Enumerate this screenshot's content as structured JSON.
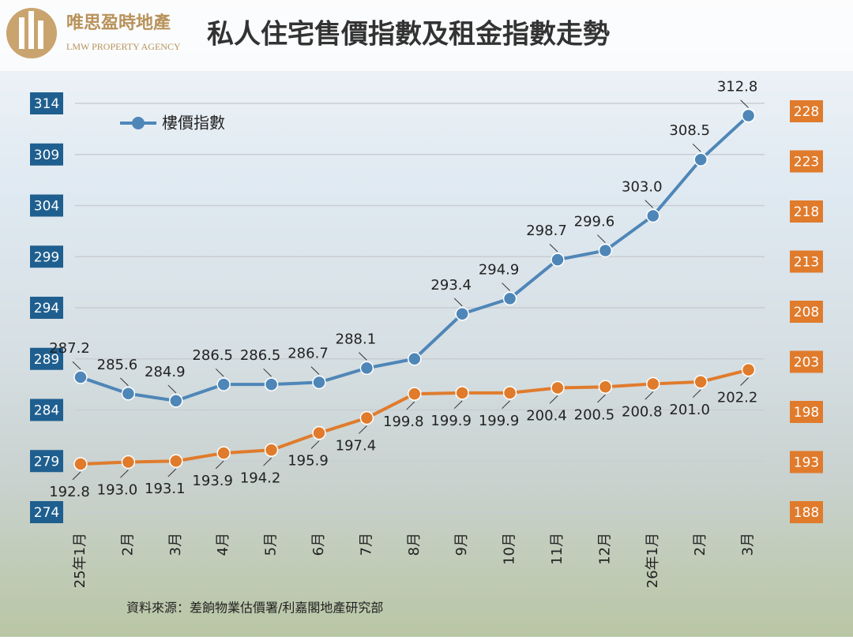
{
  "brand": {
    "name": "唯思盈時地產",
    "english": "LMW PROPERTY AGENCY"
  },
  "chart_data": {
    "type": "line",
    "title": "私人住宅售價指數及租金指數走勢",
    "categories": [
      "25年1月",
      "2月",
      "3月",
      "4月",
      "5月",
      "6月",
      "7月",
      "8月",
      "9月",
      "10月",
      "11月",
      "12月",
      "26年1月",
      "2月",
      "3月"
    ],
    "series": [
      {
        "name": "樓價指數",
        "color": "#4f86b8",
        "values": [
          287.2,
          285.6,
          284.9,
          286.5,
          286.5,
          286.7,
          288.1,
          289.0,
          293.4,
          294.9,
          298.7,
          299.6,
          303.0,
          308.5,
          312.8
        ],
        "value_labels": [
          "287.2",
          "285.6",
          "284.9",
          "286.5",
          "286.5",
          "286.7",
          "288.1",
          null,
          "293.4",
          "294.9",
          "298.7",
          "299.6",
          "303.0",
          "308.5",
          "312.8"
        ]
      },
      {
        "color": "#e07b2c",
        "axis": "y2",
        "values": [
          192.8,
          193.0,
          193.1,
          193.9,
          194.2,
          195.9,
          197.4,
          199.8,
          199.9,
          199.9,
          200.4,
          200.5,
          200.8,
          201.0,
          202.2
        ],
        "value_labels": [
          "192.8",
          "193.0",
          "193.1",
          "193.9",
          "194.2",
          "195.9",
          "197.4",
          "199.8",
          "199.9",
          "199.9",
          "200.4",
          "200.5",
          "200.8",
          "201.0",
          "202.2"
        ]
      }
    ],
    "ylim": [
      274,
      314
    ],
    "yticks": [
      274,
      279,
      284,
      289,
      294,
      299,
      304,
      309,
      314
    ],
    "y2lim": [
      188,
      228
    ],
    "y2ticks": [
      188,
      193,
      198,
      203,
      208,
      213,
      218,
      223,
      228
    ],
    "grid": true,
    "legend": "top-left",
    "source": "資料來源：差餉物業估價署/利嘉閣地產研究部"
  }
}
